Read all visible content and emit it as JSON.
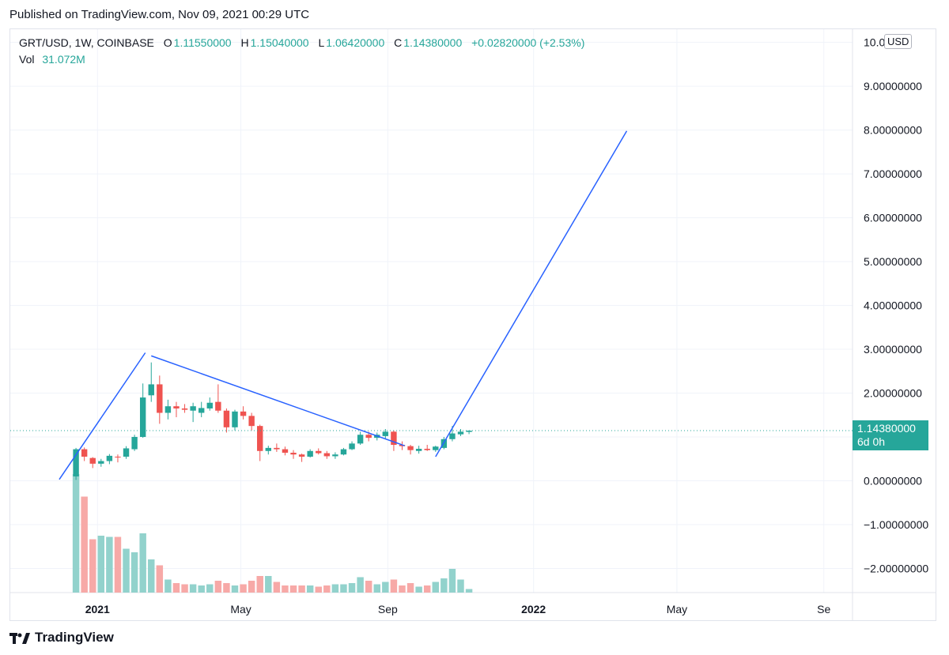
{
  "header": {
    "published": "Published on TradingView.com, Nov 09, 2021 00:29 UTC"
  },
  "legend": {
    "symbol": "GRT/USD, 1W, COINBASE",
    "o_label": "O",
    "o_value": "1.11550000",
    "h_label": "H",
    "h_value": "1.15040000",
    "l_label": "L",
    "l_value": "1.06420000",
    "c_label": "C",
    "c_value": "1.14380000",
    "change": "+0.02820000 (+2.53%)",
    "vol_label": "Vol",
    "vol_value": "31.072M"
  },
  "currency": "USD",
  "price_tag": {
    "price": "1.14380000",
    "countdown": "6d 0h"
  },
  "footer": {
    "brand": "TradingView"
  },
  "colors": {
    "up": "#26a69a",
    "down": "#ef5350",
    "up_vol": "#92d2cc",
    "down_vol": "#f7a9a7",
    "drawing": "#2962ff",
    "grid": "#f0f3fa"
  },
  "chart_data": {
    "type": "candlestick",
    "symbol": "GRT/USD",
    "interval": "1W",
    "exchange": "COINBASE",
    "y_axis": {
      "ticks": [
        -2,
        -1,
        0,
        1,
        2,
        3,
        4,
        5,
        6,
        7,
        8,
        9,
        10
      ],
      "tick_labels": [
        "−2.00000000",
        "−1.00000000",
        "0.00000000",
        "1.00000000",
        "2.00000000",
        "3.00000000",
        "4.00000000",
        "5.00000000",
        "6.00000000",
        "7.00000000",
        "8.00000000",
        "9.00000000",
        "10.0"
      ],
      "range": [
        -2.55,
        10.3
      ]
    },
    "x_axis": {
      "ticks": [
        "2021-01-01",
        "2021-05-01",
        "2021-09-01",
        "2022-01-01",
        "2022-05-01",
        "2022-09-01"
      ],
      "tick_labels": [
        "2021",
        "May",
        "Sep",
        "2022",
        "May",
        "Se"
      ],
      "range": [
        "2020-10-20",
        "2022-09-25"
      ]
    },
    "last_price": 1.1438,
    "candles": [
      {
        "date": "2020-12-14",
        "o": 0.1,
        "h": 0.75,
        "l": 0.02,
        "c": 0.72,
        "v": 1.0
      },
      {
        "date": "2020-12-21",
        "o": 0.72,
        "h": 0.76,
        "l": 0.45,
        "c": 0.55,
        "v": 0.81
      },
      {
        "date": "2020-12-28",
        "o": 0.52,
        "h": 0.54,
        "l": 0.29,
        "c": 0.39,
        "v": 0.45
      },
      {
        "date": "2021-01-04",
        "o": 0.39,
        "h": 0.5,
        "l": 0.32,
        "c": 0.45,
        "v": 0.48
      },
      {
        "date": "2021-01-11",
        "o": 0.45,
        "h": 0.61,
        "l": 0.38,
        "c": 0.57,
        "v": 0.47
      },
      {
        "date": "2021-01-18",
        "o": 0.55,
        "h": 0.6,
        "l": 0.42,
        "c": 0.54,
        "v": 0.47
      },
      {
        "date": "2021-01-25",
        "o": 0.55,
        "h": 0.79,
        "l": 0.5,
        "c": 0.74,
        "v": 0.37
      },
      {
        "date": "2021-02-01",
        "o": 0.72,
        "h": 1.05,
        "l": 0.68,
        "c": 1.0,
        "v": 0.34
      },
      {
        "date": "2021-02-08",
        "o": 1.0,
        "h": 2.22,
        "l": 0.98,
        "c": 1.9,
        "v": 0.5
      },
      {
        "date": "2021-02-15",
        "o": 1.95,
        "h": 2.7,
        "l": 1.8,
        "c": 2.2,
        "v": 0.28
      },
      {
        "date": "2021-02-22",
        "o": 2.2,
        "h": 2.4,
        "l": 1.3,
        "c": 1.55,
        "v": 0.23
      },
      {
        "date": "2021-03-01",
        "o": 1.55,
        "h": 1.85,
        "l": 1.4,
        "c": 1.7,
        "v": 0.11
      },
      {
        "date": "2021-03-08",
        "o": 1.7,
        "h": 1.8,
        "l": 1.45,
        "c": 1.65,
        "v": 0.08
      },
      {
        "date": "2021-03-15",
        "o": 1.65,
        "h": 1.75,
        "l": 1.55,
        "c": 1.62,
        "v": 0.07
      },
      {
        "date": "2021-03-22",
        "o": 1.6,
        "h": 1.78,
        "l": 1.34,
        "c": 1.7,
        "v": 0.07
      },
      {
        "date": "2021-03-29",
        "o": 1.55,
        "h": 1.8,
        "l": 1.45,
        "c": 1.66,
        "v": 0.06
      },
      {
        "date": "2021-04-05",
        "o": 1.65,
        "h": 1.9,
        "l": 1.6,
        "c": 1.78,
        "v": 0.07
      },
      {
        "date": "2021-04-12",
        "o": 1.8,
        "h": 2.2,
        "l": 1.55,
        "c": 1.6,
        "v": 0.1
      },
      {
        "date": "2021-04-19",
        "o": 1.6,
        "h": 1.65,
        "l": 1.1,
        "c": 1.22,
        "v": 0.08
      },
      {
        "date": "2021-04-26",
        "o": 1.22,
        "h": 1.62,
        "l": 1.15,
        "c": 1.58,
        "v": 0.06
      },
      {
        "date": "2021-05-03",
        "o": 1.58,
        "h": 1.7,
        "l": 1.4,
        "c": 1.48,
        "v": 0.07
      },
      {
        "date": "2021-05-10",
        "o": 1.48,
        "h": 1.55,
        "l": 1.15,
        "c": 1.25,
        "v": 0.1
      },
      {
        "date": "2021-05-17",
        "o": 1.25,
        "h": 1.28,
        "l": 0.45,
        "c": 0.68,
        "v": 0.14
      },
      {
        "date": "2021-05-24",
        "o": 0.68,
        "h": 0.8,
        "l": 0.6,
        "c": 0.75,
        "v": 0.14
      },
      {
        "date": "2021-05-31",
        "o": 0.75,
        "h": 0.85,
        "l": 0.66,
        "c": 0.72,
        "v": 0.09
      },
      {
        "date": "2021-06-07",
        "o": 0.72,
        "h": 0.78,
        "l": 0.58,
        "c": 0.64,
        "v": 0.06
      },
      {
        "date": "2021-06-14",
        "o": 0.64,
        "h": 0.7,
        "l": 0.5,
        "c": 0.6,
        "v": 0.06
      },
      {
        "date": "2021-06-21",
        "o": 0.6,
        "h": 0.62,
        "l": 0.43,
        "c": 0.55,
        "v": 0.06
      },
      {
        "date": "2021-06-28",
        "o": 0.55,
        "h": 0.72,
        "l": 0.53,
        "c": 0.68,
        "v": 0.06
      },
      {
        "date": "2021-07-05",
        "o": 0.68,
        "h": 0.74,
        "l": 0.6,
        "c": 0.63,
        "v": 0.05
      },
      {
        "date": "2021-07-12",
        "o": 0.63,
        "h": 0.68,
        "l": 0.5,
        "c": 0.56,
        "v": 0.06
      },
      {
        "date": "2021-07-19",
        "o": 0.56,
        "h": 0.65,
        "l": 0.5,
        "c": 0.6,
        "v": 0.07
      },
      {
        "date": "2021-07-26",
        "o": 0.6,
        "h": 0.75,
        "l": 0.58,
        "c": 0.72,
        "v": 0.07
      },
      {
        "date": "2021-08-02",
        "o": 0.72,
        "h": 0.9,
        "l": 0.7,
        "c": 0.85,
        "v": 0.08
      },
      {
        "date": "2021-08-09",
        "o": 0.85,
        "h": 1.12,
        "l": 0.82,
        "c": 1.05,
        "v": 0.13
      },
      {
        "date": "2021-08-16",
        "o": 1.05,
        "h": 1.12,
        "l": 0.9,
        "c": 0.98,
        "v": 0.1
      },
      {
        "date": "2021-08-23",
        "o": 0.98,
        "h": 1.1,
        "l": 0.92,
        "c": 1.05,
        "v": 0.07
      },
      {
        "date": "2021-08-30",
        "o": 1.02,
        "h": 1.18,
        "l": 0.95,
        "c": 1.12,
        "v": 0.09
      },
      {
        "date": "2021-09-06",
        "o": 1.12,
        "h": 1.15,
        "l": 0.68,
        "c": 0.82,
        "v": 0.11
      },
      {
        "date": "2021-09-13",
        "o": 0.82,
        "h": 0.9,
        "l": 0.7,
        "c": 0.79,
        "v": 0.06
      },
      {
        "date": "2021-09-20",
        "o": 0.79,
        "h": 0.82,
        "l": 0.6,
        "c": 0.7,
        "v": 0.08
      },
      {
        "date": "2021-09-27",
        "o": 0.68,
        "h": 0.8,
        "l": 0.62,
        "c": 0.73,
        "v": 0.05
      },
      {
        "date": "2021-10-04",
        "o": 0.73,
        "h": 0.82,
        "l": 0.68,
        "c": 0.7,
        "v": 0.06
      },
      {
        "date": "2021-10-11",
        "o": 0.7,
        "h": 0.8,
        "l": 0.66,
        "c": 0.78,
        "v": 0.09
      },
      {
        "date": "2021-10-18",
        "o": 0.75,
        "h": 1.0,
        "l": 0.72,
        "c": 0.95,
        "v": 0.12
      },
      {
        "date": "2021-10-25",
        "o": 0.95,
        "h": 1.25,
        "l": 0.9,
        "c": 1.08,
        "v": 0.2
      },
      {
        "date": "2021-11-01",
        "o": 1.06,
        "h": 1.18,
        "l": 1.02,
        "c": 1.12,
        "v": 0.11
      },
      {
        "date": "2021-11-08",
        "o": 1.1155,
        "h": 1.1504,
        "l": 1.0642,
        "c": 1.1438,
        "v": 0.03
      }
    ],
    "trendlines": [
      {
        "from": {
          "date": "2020-11-30",
          "price": 0.03
        },
        "to": {
          "date": "2021-02-10",
          "price": 2.92
        }
      },
      {
        "from": {
          "date": "2021-02-15",
          "price": 2.85
        },
        "to": {
          "date": "2021-09-15",
          "price": 0.8
        }
      },
      {
        "from": {
          "date": "2021-10-11",
          "price": 0.55
        },
        "to": {
          "date": "2022-03-20",
          "price": 7.98
        }
      }
    ]
  }
}
